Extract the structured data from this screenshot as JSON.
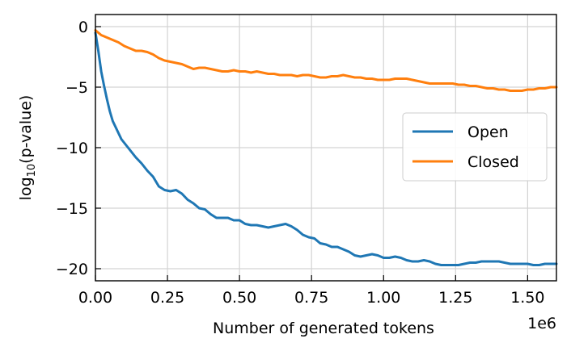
{
  "chart_data": {
    "type": "line",
    "xlabel": "Number of generated tokens",
    "x_offset_text": "1e6",
    "ylabel_main": "log",
    "ylabel_sub": "10",
    "ylabel_rest": "(p-value)",
    "xlim": [
      0,
      1.6
    ],
    "ylim": [
      -21,
      1
    ],
    "xticks": [
      0.0,
      0.25,
      0.5,
      0.75,
      1.0,
      1.25,
      1.5
    ],
    "xtick_labels": [
      "0.00",
      "0.25",
      "0.50",
      "0.75",
      "1.00",
      "1.25",
      "1.50"
    ],
    "yticks": [
      0,
      -5,
      -10,
      -15,
      -20
    ],
    "ytick_labels": [
      "0",
      "−5",
      "−10",
      "−15",
      "−20"
    ],
    "grid": true,
    "legend_position": "right",
    "series": [
      {
        "name": "Open",
        "color": "#1f77b4",
        "x": [
          0,
          0.01,
          0.02,
          0.03,
          0.04,
          0.05,
          0.06,
          0.07,
          0.08,
          0.09,
          0.1,
          0.12,
          0.14,
          0.16,
          0.18,
          0.2,
          0.22,
          0.24,
          0.26,
          0.28,
          0.3,
          0.32,
          0.34,
          0.36,
          0.38,
          0.4,
          0.42,
          0.44,
          0.46,
          0.48,
          0.5,
          0.52,
          0.54,
          0.56,
          0.58,
          0.6,
          0.62,
          0.64,
          0.66,
          0.68,
          0.7,
          0.72,
          0.74,
          0.76,
          0.78,
          0.8,
          0.82,
          0.84,
          0.86,
          0.88,
          0.9,
          0.92,
          0.94,
          0.96,
          0.98,
          1.0,
          1.02,
          1.04,
          1.06,
          1.08,
          1.1,
          1.12,
          1.14,
          1.16,
          1.18,
          1.2,
          1.22,
          1.24,
          1.26,
          1.28,
          1.3,
          1.32,
          1.34,
          1.36,
          1.38,
          1.4,
          1.42,
          1.44,
          1.46,
          1.48,
          1.5,
          1.52,
          1.54,
          1.56,
          1.58,
          1.6
        ],
        "y": [
          -0.5,
          -2.0,
          -3.7,
          -4.9,
          -6.0,
          -7.0,
          -7.8,
          -8.3,
          -8.8,
          -9.3,
          -9.6,
          -10.2,
          -10.8,
          -11.3,
          -11.9,
          -12.4,
          -13.2,
          -13.5,
          -13.6,
          -13.5,
          -13.8,
          -14.3,
          -14.6,
          -15.0,
          -15.1,
          -15.5,
          -15.8,
          -15.8,
          -15.8,
          -16.0,
          -16.0,
          -16.3,
          -16.4,
          -16.4,
          -16.5,
          -16.6,
          -16.5,
          -16.4,
          -16.3,
          -16.5,
          -16.8,
          -17.2,
          -17.4,
          -17.5,
          -17.9,
          -18.0,
          -18.2,
          -18.2,
          -18.4,
          -18.6,
          -18.9,
          -19.0,
          -18.9,
          -18.8,
          -18.9,
          -19.1,
          -19.1,
          -19.0,
          -19.1,
          -19.3,
          -19.4,
          -19.4,
          -19.3,
          -19.4,
          -19.6,
          -19.7,
          -19.7,
          -19.7,
          -19.7,
          -19.6,
          -19.5,
          -19.5,
          -19.4,
          -19.4,
          -19.4,
          -19.4,
          -19.5,
          -19.6,
          -19.6,
          -19.6,
          -19.6,
          -19.7,
          -19.7,
          -19.6,
          -19.6,
          -19.6
        ]
      },
      {
        "name": "Closed",
        "color": "#ff7f0e",
        "x": [
          0,
          0.02,
          0.04,
          0.06,
          0.08,
          0.1,
          0.12,
          0.14,
          0.16,
          0.18,
          0.2,
          0.22,
          0.24,
          0.26,
          0.28,
          0.3,
          0.32,
          0.34,
          0.36,
          0.38,
          0.4,
          0.42,
          0.44,
          0.46,
          0.48,
          0.5,
          0.52,
          0.54,
          0.56,
          0.58,
          0.6,
          0.62,
          0.64,
          0.66,
          0.68,
          0.7,
          0.72,
          0.74,
          0.76,
          0.78,
          0.8,
          0.82,
          0.84,
          0.86,
          0.88,
          0.9,
          0.92,
          0.94,
          0.96,
          0.98,
          1.0,
          1.02,
          1.04,
          1.06,
          1.08,
          1.1,
          1.12,
          1.14,
          1.16,
          1.18,
          1.2,
          1.22,
          1.24,
          1.26,
          1.28,
          1.3,
          1.32,
          1.34,
          1.36,
          1.38,
          1.4,
          1.42,
          1.44,
          1.46,
          1.48,
          1.5,
          1.52,
          1.54,
          1.56,
          1.58,
          1.6
        ],
        "y": [
          -0.3,
          -0.7,
          -0.9,
          -1.1,
          -1.3,
          -1.6,
          -1.8,
          -2.0,
          -2.0,
          -2.1,
          -2.3,
          -2.6,
          -2.8,
          -2.9,
          -3.0,
          -3.1,
          -3.3,
          -3.5,
          -3.4,
          -3.4,
          -3.5,
          -3.6,
          -3.7,
          -3.7,
          -3.6,
          -3.7,
          -3.7,
          -3.8,
          -3.7,
          -3.8,
          -3.9,
          -3.9,
          -4.0,
          -4.0,
          -4.0,
          -4.1,
          -4.0,
          -4.0,
          -4.1,
          -4.2,
          -4.2,
          -4.1,
          -4.1,
          -4.0,
          -4.1,
          -4.2,
          -4.2,
          -4.3,
          -4.3,
          -4.4,
          -4.4,
          -4.4,
          -4.3,
          -4.3,
          -4.3,
          -4.4,
          -4.5,
          -4.6,
          -4.7,
          -4.7,
          -4.7,
          -4.7,
          -4.7,
          -4.8,
          -4.8,
          -4.9,
          -4.9,
          -5.0,
          -5.1,
          -5.1,
          -5.2,
          -5.2,
          -5.3,
          -5.3,
          -5.3,
          -5.2,
          -5.2,
          -5.1,
          -5.1,
          -5.0,
          -5.0
        ]
      }
    ]
  }
}
